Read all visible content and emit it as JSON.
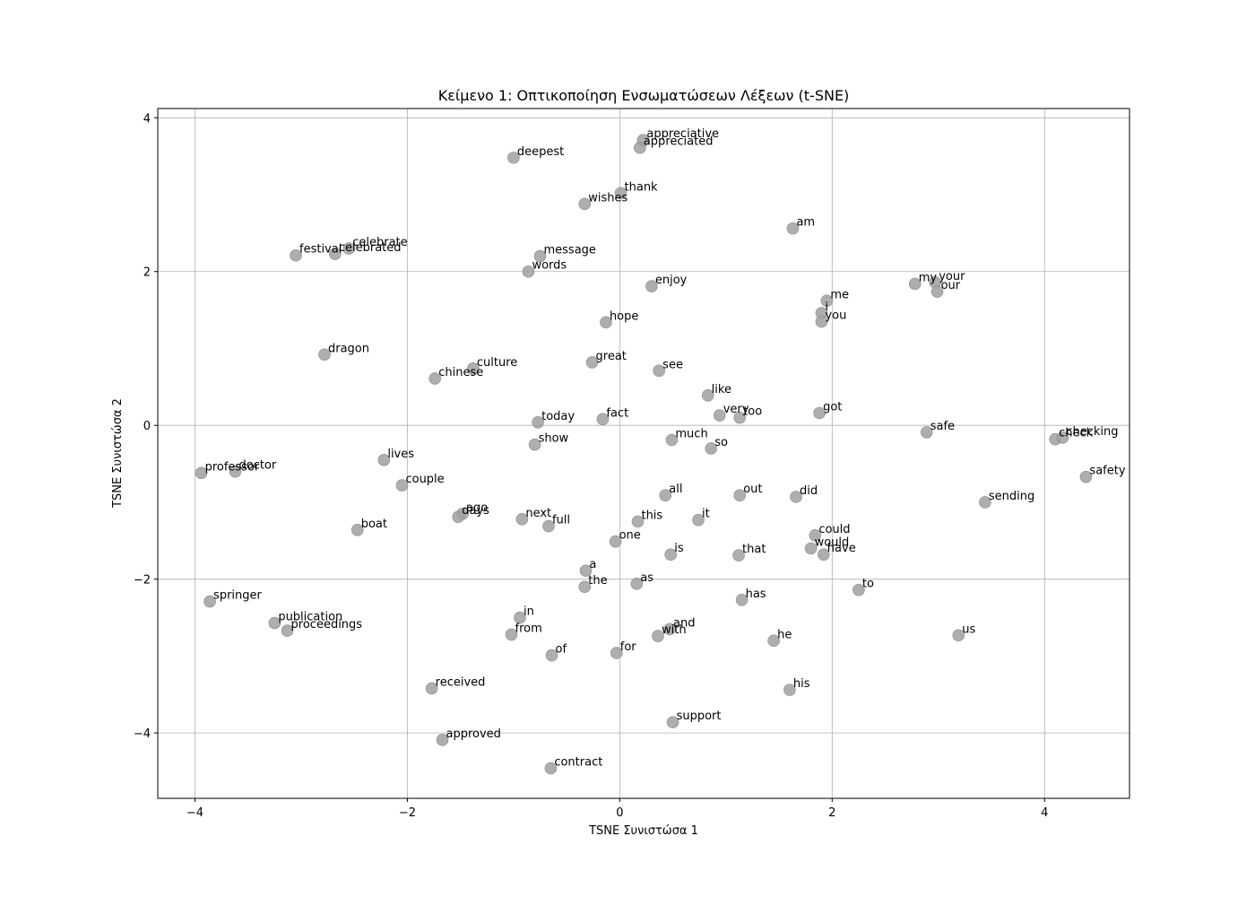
{
  "chart_data": {
    "type": "scatter",
    "title": "Κείμενο 1: Οπτικοποίηση Ενσωματώσεων Λέξεων (t-SNE)",
    "xlabel": "TSNE Συνιστώσα 1",
    "ylabel": "TSNE Συνιστώσα 2",
    "xlim": [
      -4.35,
      4.8
    ],
    "ylim": [
      -4.85,
      4.12
    ],
    "xticks": [
      -4,
      -2,
      0,
      2,
      4
    ],
    "yticks": [
      -4,
      -2,
      0,
      2,
      4
    ],
    "xtick_labels": [
      "−4",
      "−2",
      "0",
      "2",
      "4"
    ],
    "ytick_labels": [
      "−4",
      "−2",
      "0",
      "2",
      "4"
    ],
    "grid": true,
    "point_color": "#a0a0a0",
    "points": [
      {
        "label": "appreciative",
        "x": 0.22,
        "y": 3.71
      },
      {
        "label": "appreciated",
        "x": 0.19,
        "y": 3.61
      },
      {
        "label": "deepest",
        "x": -1.0,
        "y": 3.48
      },
      {
        "label": "thank",
        "x": 0.01,
        "y": 3.02
      },
      {
        "label": "wishes",
        "x": -0.33,
        "y": 2.88
      },
      {
        "label": "am",
        "x": 1.63,
        "y": 2.56
      },
      {
        "label": "celebrate",
        "x": -2.55,
        "y": 2.3
      },
      {
        "label": "celebrated",
        "x": -2.68,
        "y": 2.23
      },
      {
        "label": "festival",
        "x": -3.05,
        "y": 2.21
      },
      {
        "label": "message",
        "x": -0.75,
        "y": 2.2
      },
      {
        "label": "words",
        "x": -0.86,
        "y": 2.0
      },
      {
        "label": "enjoy",
        "x": 0.3,
        "y": 1.81
      },
      {
        "label": "my",
        "x": 2.78,
        "y": 1.84
      },
      {
        "label": "your",
        "x": 2.97,
        "y": 1.86
      },
      {
        "label": "our",
        "x": 2.99,
        "y": 1.74
      },
      {
        "label": "me",
        "x": 1.95,
        "y": 1.62
      },
      {
        "label": "i",
        "x": 1.9,
        "y": 1.46
      },
      {
        "label": "you",
        "x": 1.9,
        "y": 1.35
      },
      {
        "label": "hope",
        "x": -0.13,
        "y": 1.34
      },
      {
        "label": "dragon",
        "x": -2.78,
        "y": 0.92
      },
      {
        "label": "culture",
        "x": -1.38,
        "y": 0.74
      },
      {
        "label": "chinese",
        "x": -1.74,
        "y": 0.61
      },
      {
        "label": "great",
        "x": -0.26,
        "y": 0.82
      },
      {
        "label": "see",
        "x": 0.37,
        "y": 0.71
      },
      {
        "label": "like",
        "x": 0.83,
        "y": 0.39
      },
      {
        "label": "very",
        "x": 0.94,
        "y": 0.13
      },
      {
        "label": "too",
        "x": 1.13,
        "y": 0.1
      },
      {
        "label": "got",
        "x": 1.88,
        "y": 0.16
      },
      {
        "label": "fact",
        "x": -0.16,
        "y": 0.08
      },
      {
        "label": "today",
        "x": -0.77,
        "y": 0.04
      },
      {
        "label": "safe",
        "x": 2.89,
        "y": -0.09
      },
      {
        "label": "check",
        "x": 4.1,
        "y": -0.18
      },
      {
        "label": "checking",
        "x": 4.17,
        "y": -0.16
      },
      {
        "label": "much",
        "x": 0.49,
        "y": -0.19
      },
      {
        "label": "show",
        "x": -0.8,
        "y": -0.25
      },
      {
        "label": "so",
        "x": 0.86,
        "y": -0.3
      },
      {
        "label": "lives",
        "x": -2.22,
        "y": -0.45
      },
      {
        "label": "professor",
        "x": -3.94,
        "y": -0.62
      },
      {
        "label": "doctor",
        "x": -3.62,
        "y": -0.6
      },
      {
        "label": "safety",
        "x": 4.39,
        "y": -0.67
      },
      {
        "label": "couple",
        "x": -2.05,
        "y": -0.78
      },
      {
        "label": "all",
        "x": 0.43,
        "y": -0.91
      },
      {
        "label": "out",
        "x": 1.13,
        "y": -0.91
      },
      {
        "label": "did",
        "x": 1.66,
        "y": -0.93
      },
      {
        "label": "sending",
        "x": 3.44,
        "y": -1.0
      },
      {
        "label": "ago",
        "x": -1.48,
        "y": -1.15
      },
      {
        "label": "days",
        "x": -1.52,
        "y": -1.19
      },
      {
        "label": "next",
        "x": -0.92,
        "y": -1.22
      },
      {
        "label": "it",
        "x": 0.74,
        "y": -1.23
      },
      {
        "label": "this",
        "x": 0.17,
        "y": -1.25
      },
      {
        "label": "full",
        "x": -0.67,
        "y": -1.31
      },
      {
        "label": "boat",
        "x": -2.47,
        "y": -1.36
      },
      {
        "label": "could",
        "x": 1.84,
        "y": -1.43
      },
      {
        "label": "one",
        "x": -0.04,
        "y": -1.51
      },
      {
        "label": "would",
        "x": 1.8,
        "y": -1.6
      },
      {
        "label": "have",
        "x": 1.92,
        "y": -1.68
      },
      {
        "label": "is",
        "x": 0.48,
        "y": -1.68
      },
      {
        "label": "that",
        "x": 1.12,
        "y": -1.69
      },
      {
        "label": "a",
        "x": -0.32,
        "y": -1.89
      },
      {
        "label": "as",
        "x": 0.16,
        "y": -2.06
      },
      {
        "label": "the",
        "x": -0.33,
        "y": -2.1
      },
      {
        "label": "to",
        "x": 2.25,
        "y": -2.14
      },
      {
        "label": "has",
        "x": 1.15,
        "y": -2.27
      },
      {
        "label": "springer",
        "x": -3.86,
        "y": -2.29
      },
      {
        "label": "in",
        "x": -0.94,
        "y": -2.5
      },
      {
        "label": "publication",
        "x": -3.25,
        "y": -2.57
      },
      {
        "label": "proceedings",
        "x": -3.13,
        "y": -2.67
      },
      {
        "label": "and",
        "x": 0.47,
        "y": -2.65
      },
      {
        "label": "with",
        "x": 0.36,
        "y": -2.74
      },
      {
        "label": "from",
        "x": -1.02,
        "y": -2.72
      },
      {
        "label": "he",
        "x": 1.45,
        "y": -2.8
      },
      {
        "label": "us",
        "x": 3.19,
        "y": -2.73
      },
      {
        "label": "of",
        "x": -0.64,
        "y": -2.99
      },
      {
        "label": "for",
        "x": -0.03,
        "y": -2.96
      },
      {
        "label": "received",
        "x": -1.77,
        "y": -3.42
      },
      {
        "label": "his",
        "x": 1.6,
        "y": -3.44
      },
      {
        "label": "support",
        "x": 0.5,
        "y": -3.86
      },
      {
        "label": "approved",
        "x": -1.67,
        "y": -4.09
      },
      {
        "label": "contract",
        "x": -0.65,
        "y": -4.46
      }
    ]
  }
}
